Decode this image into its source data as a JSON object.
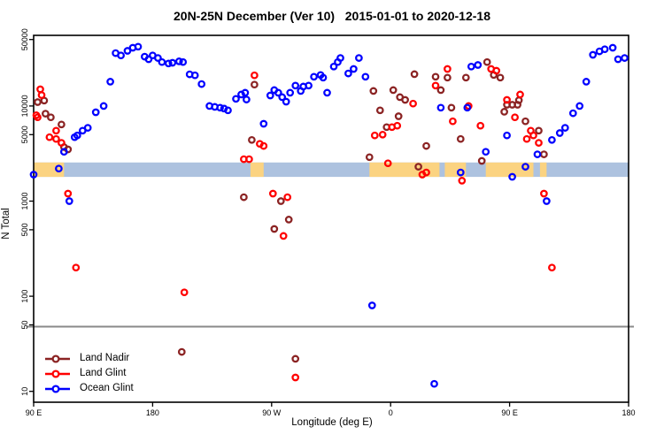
{
  "title": "20N-25N December (Ver 10)   2015-01-01 to 2020-12-18",
  "chart_data": {
    "type": "scatter",
    "title": "20N-25N December (Ver 10)   2015-01-01 to 2020-12-18",
    "xlabel": "Longitude (deg E)",
    "ylabel": "N Total",
    "x_axis": {
      "min": 90,
      "max": 540,
      "ticks": [
        {
          "value": 90,
          "label": "90 E"
        },
        {
          "value": 180,
          "label": "180"
        },
        {
          "value": 270,
          "label": "90 W"
        },
        {
          "value": 360,
          "label": "0"
        },
        {
          "value": 450,
          "label": "90 E"
        },
        {
          "value": 540,
          "label": "180"
        }
      ]
    },
    "y_axis": {
      "scale": "log",
      "min": 10,
      "max": 50000,
      "ticks": [
        {
          "value": 10,
          "label": "10"
        },
        {
          "value": 50,
          "label": "50"
        },
        {
          "value": 100,
          "label": "100"
        },
        {
          "value": 500,
          "label": "500"
        },
        {
          "value": 1000,
          "label": "1000"
        },
        {
          "value": 5000,
          "label": "5000"
        },
        {
          "value": 10000,
          "label": "10000"
        },
        {
          "value": 50000,
          "label": "50000"
        }
      ]
    },
    "reference_line": {
      "value": 50,
      "color": "#8a8a8a"
    },
    "map_strip": {
      "note": "land/ocean map band for 20N-25N latitude strip",
      "ocean_color": "#ADC2DF",
      "land_color": "#FBD381",
      "value_top": 2550,
      "value_bottom": 1800,
      "land_segments_lon": [
        [
          90,
          113
        ],
        [
          254,
          264
        ],
        [
          344,
          397
        ],
        [
          401,
          417
        ],
        [
          432,
          468
        ],
        [
          473,
          478
        ]
      ]
    },
    "legend_position": "bottom-left",
    "series": [
      {
        "name": "Land Nadir",
        "color": "#8B2323",
        "points": [
          [
            93,
            11000
          ],
          [
            98,
            11400
          ],
          [
            99,
            8300
          ],
          [
            103,
            7600
          ],
          [
            111,
            6400
          ],
          [
            113,
            3700
          ],
          [
            116,
            3500
          ],
          [
            202,
            26
          ],
          [
            249,
            1100
          ],
          [
            255,
            4400
          ],
          [
            257,
            16800
          ],
          [
            272,
            510
          ],
          [
            277,
            1000
          ],
          [
            283,
            640
          ],
          [
            288,
            22
          ],
          [
            344,
            2900
          ],
          [
            347,
            14400
          ],
          [
            352,
            9000
          ],
          [
            357,
            6000
          ],
          [
            362,
            14700
          ],
          [
            366,
            7800
          ],
          [
            367,
            12400
          ],
          [
            371,
            11600
          ],
          [
            378,
            21600
          ],
          [
            381,
            2300
          ],
          [
            387,
            3800
          ],
          [
            394,
            20300
          ],
          [
            398,
            14700
          ],
          [
            403,
            19900
          ],
          [
            406,
            9600
          ],
          [
            413,
            4500
          ],
          [
            417,
            19900
          ],
          [
            429,
            2650
          ],
          [
            433,
            29000
          ],
          [
            438,
            21200
          ],
          [
            443,
            19900
          ],
          [
            446,
            8700
          ],
          [
            448,
            10300
          ],
          [
            452,
            10300
          ],
          [
            456,
            10300
          ],
          [
            457,
            11500
          ],
          [
            462,
            6900
          ],
          [
            472,
            5500
          ],
          [
            476,
            3100
          ]
        ]
      },
      {
        "name": "Land Glint",
        "color": "#FF0000",
        "points": [
          [
            95,
            15000
          ],
          [
            96,
            13000
          ],
          [
            92,
            8000
          ],
          [
            93,
            7600
          ],
          [
            102,
            4700
          ],
          [
            107,
            5500
          ],
          [
            107,
            4500
          ],
          [
            111,
            4100
          ],
          [
            116,
            1200
          ],
          [
            122,
            200
          ],
          [
            204,
            110
          ],
          [
            249,
            2760
          ],
          [
            253,
            2760
          ],
          [
            257,
            21000
          ],
          [
            261,
            4000
          ],
          [
            264,
            3800
          ],
          [
            271,
            1200
          ],
          [
            282,
            1100
          ],
          [
            279,
            430
          ],
          [
            288,
            14
          ],
          [
            348,
            4900
          ],
          [
            354,
            5000
          ],
          [
            358,
            2500
          ],
          [
            361,
            6000
          ],
          [
            365,
            6200
          ],
          [
            377,
            10600
          ],
          [
            384,
            1900
          ],
          [
            387,
            2000
          ],
          [
            394,
            16400
          ],
          [
            403,
            24500
          ],
          [
            407,
            6900
          ],
          [
            414,
            1640
          ],
          [
            419,
            10000
          ],
          [
            428,
            6200
          ],
          [
            436,
            24500
          ],
          [
            440,
            23500
          ],
          [
            448,
            11600
          ],
          [
            454,
            7600
          ],
          [
            458,
            13200
          ],
          [
            463,
            4500
          ],
          [
            466,
            5500
          ],
          [
            468,
            4900
          ],
          [
            472,
            4100
          ],
          [
            476,
            1200
          ],
          [
            482,
            200
          ]
        ]
      },
      {
        "name": "Ocean Glint",
        "color": "#0000FF",
        "points": [
          [
            90,
            1900
          ],
          [
            109,
            2200
          ],
          [
            113,
            3300
          ],
          [
            117,
            1000
          ],
          [
            121,
            4700
          ],
          [
            123,
            4900
          ],
          [
            127,
            5500
          ],
          [
            131,
            5900
          ],
          [
            137,
            8600
          ],
          [
            143,
            10000
          ],
          [
            148,
            18000
          ],
          [
            152,
            36000
          ],
          [
            156,
            34000
          ],
          [
            161,
            38000
          ],
          [
            165,
            41000
          ],
          [
            169,
            42000
          ],
          [
            174,
            33000
          ],
          [
            177,
            31000
          ],
          [
            180,
            34000
          ],
          [
            184,
            32000
          ],
          [
            187,
            29000
          ],
          [
            192,
            28000
          ],
          [
            195,
            28500
          ],
          [
            200,
            29500
          ],
          [
            203,
            29000
          ],
          [
            208,
            21500
          ],
          [
            212,
            21000
          ],
          [
            217,
            17000
          ],
          [
            223,
            10000
          ],
          [
            227,
            9800
          ],
          [
            231,
            9600
          ],
          [
            234,
            9400
          ],
          [
            237,
            9000
          ],
          [
            243,
            11900
          ],
          [
            247,
            13200
          ],
          [
            250,
            13800
          ],
          [
            251,
            11700
          ],
          [
            264,
            6500
          ],
          [
            269,
            12900
          ],
          [
            272,
            14700
          ],
          [
            275,
            13800
          ],
          [
            278,
            12400
          ],
          [
            281,
            11100
          ],
          [
            284,
            13800
          ],
          [
            288,
            16400
          ],
          [
            292,
            14400
          ],
          [
            294,
            16000
          ],
          [
            298,
            16400
          ],
          [
            302,
            20300
          ],
          [
            307,
            21200
          ],
          [
            309,
            19900
          ],
          [
            312,
            13800
          ],
          [
            317,
            26000
          ],
          [
            320,
            29000
          ],
          [
            322,
            32000
          ],
          [
            328,
            22000
          ],
          [
            332,
            24500
          ],
          [
            336,
            32000
          ],
          [
            341,
            20300
          ],
          [
            346,
            80
          ],
          [
            393,
            12
          ],
          [
            398,
            9600
          ],
          [
            413,
            2000
          ],
          [
            418,
            9600
          ],
          [
            421,
            26000
          ],
          [
            426,
            27000
          ],
          [
            432,
            3300
          ],
          [
            448,
            4900
          ],
          [
            452,
            1800
          ],
          [
            462,
            2300
          ],
          [
            471,
            3100
          ],
          [
            478,
            1000
          ],
          [
            482,
            4400
          ],
          [
            488,
            5200
          ],
          [
            492,
            5900
          ],
          [
            498,
            8400
          ],
          [
            503,
            10000
          ],
          [
            508,
            18000
          ],
          [
            513,
            34500
          ],
          [
            518,
            37500
          ],
          [
            522,
            39500
          ],
          [
            528,
            41000
          ],
          [
            532,
            31000
          ],
          [
            537,
            32000
          ]
        ]
      }
    ]
  }
}
